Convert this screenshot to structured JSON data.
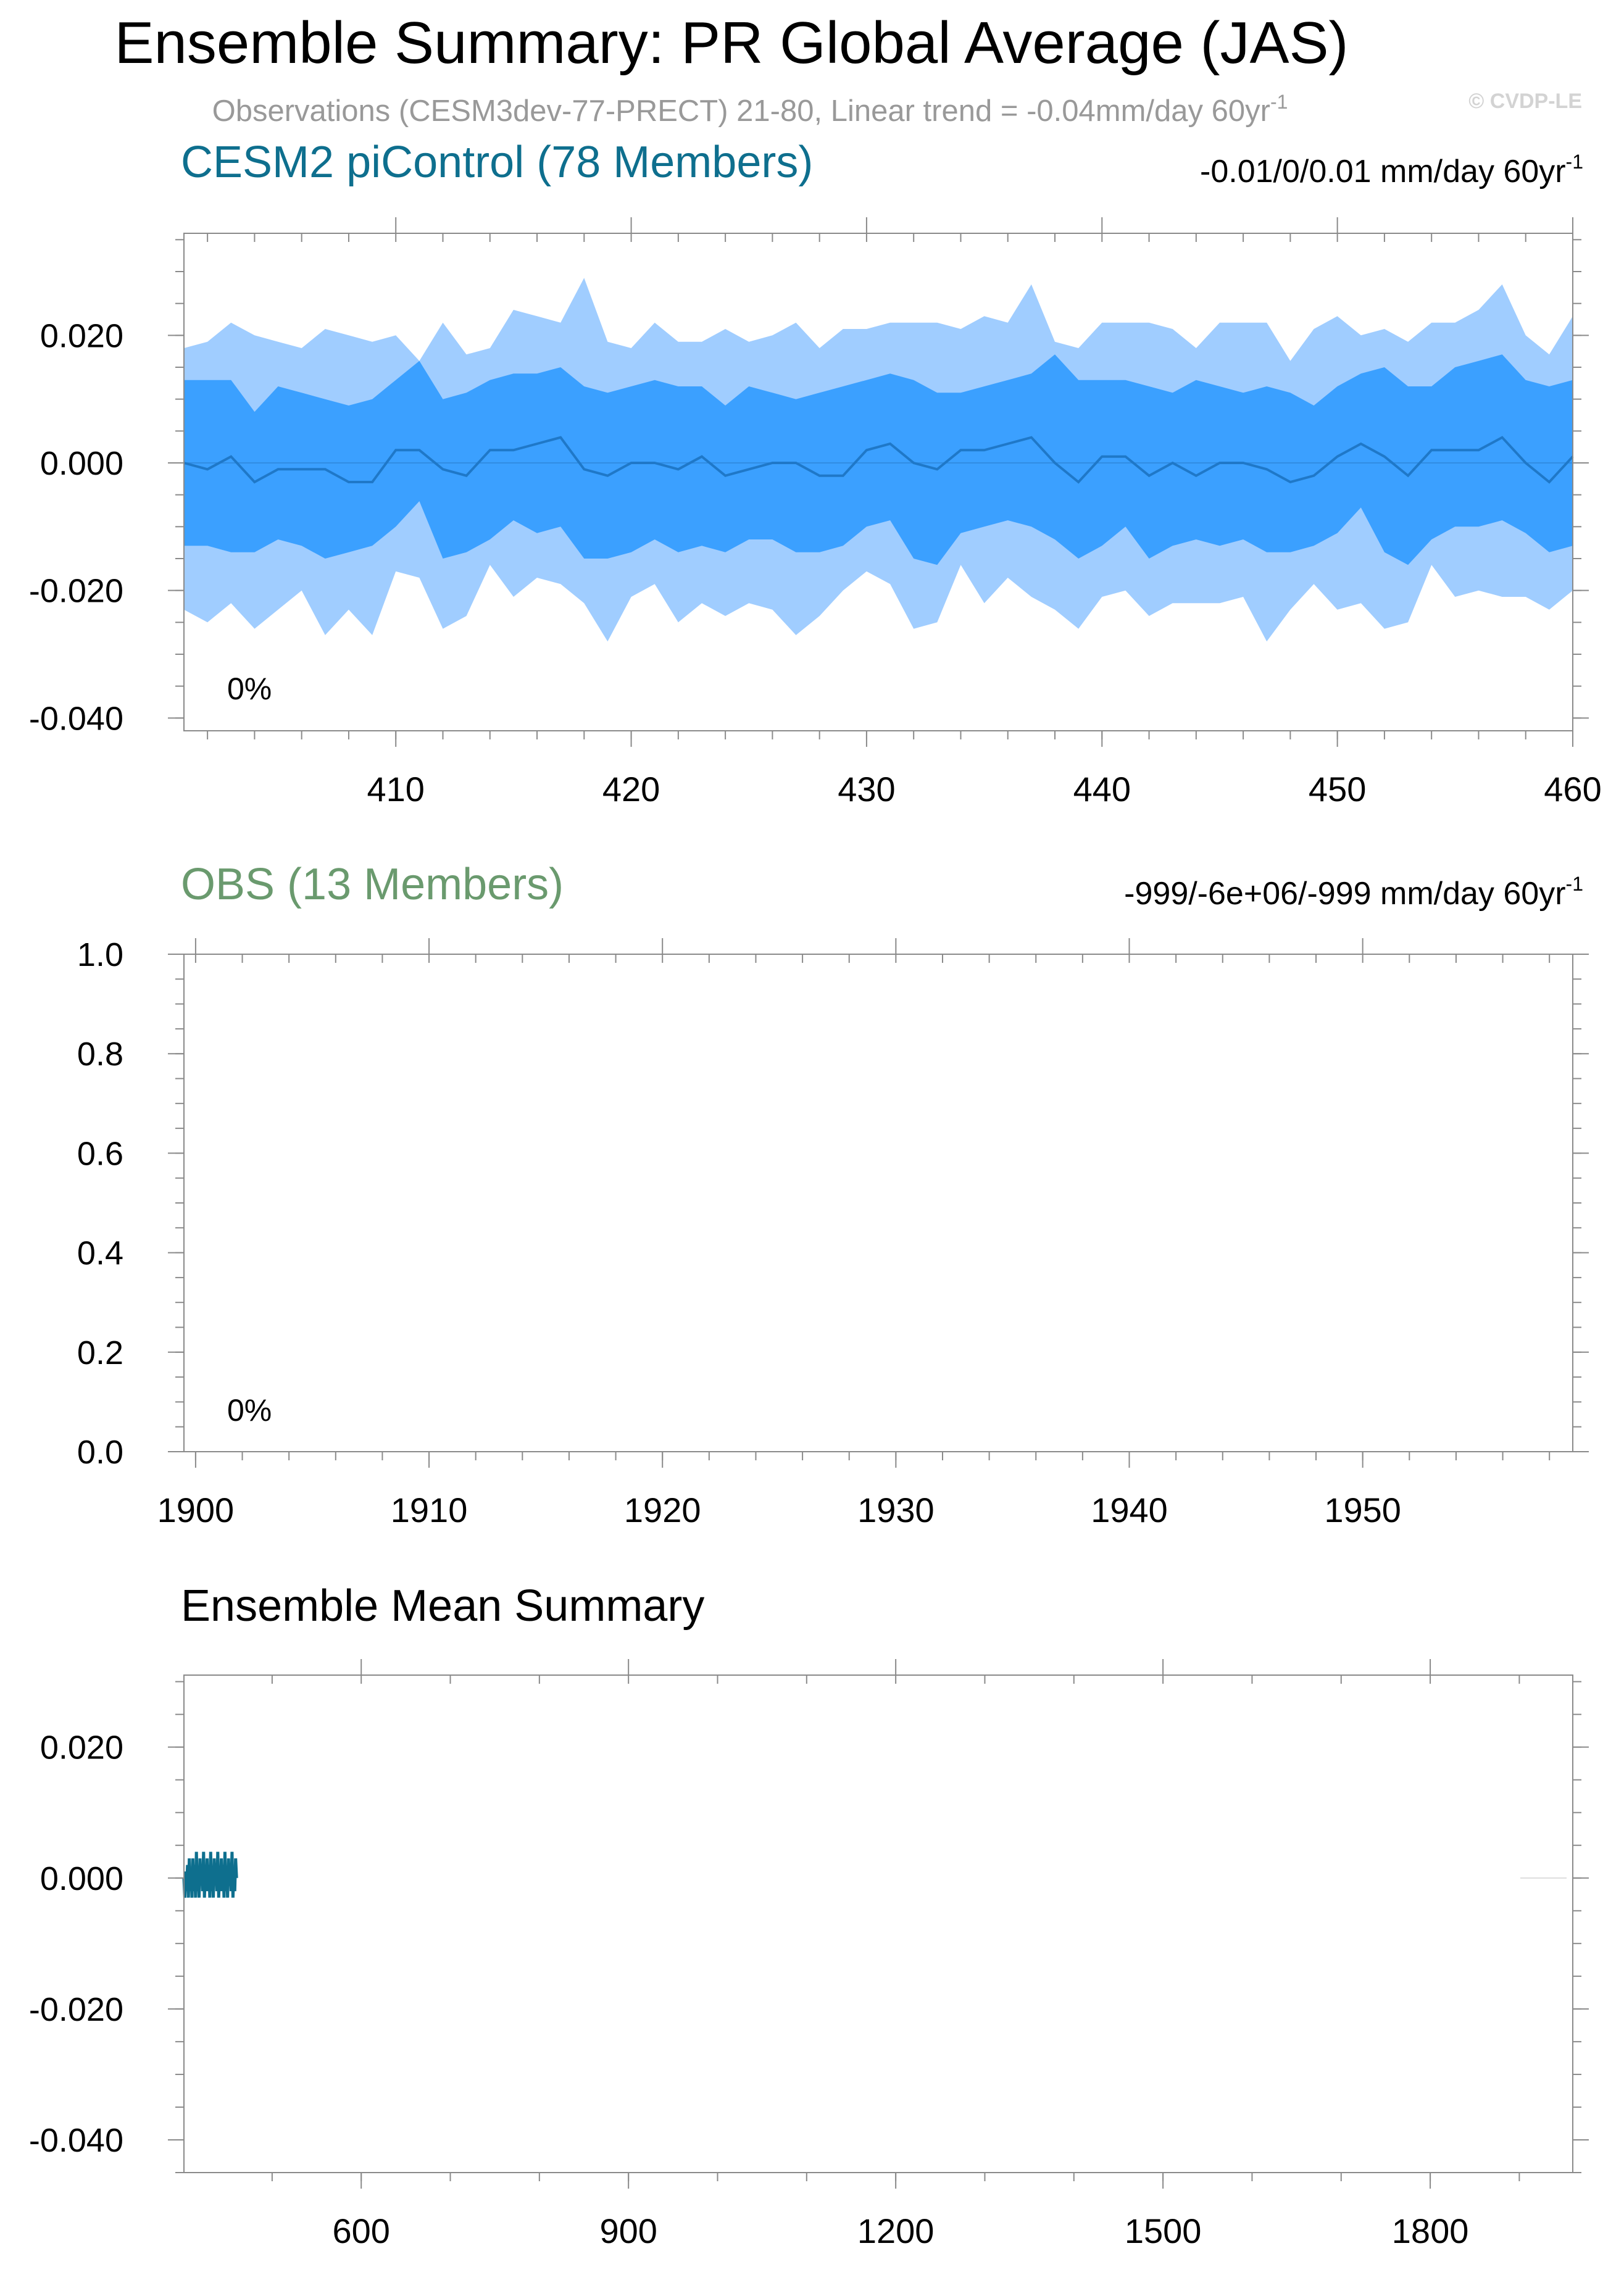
{
  "header": {
    "title": "Ensemble Summary: PR Global Average (JAS)",
    "subtitle": "Observations (CESM3dev-77-PRECT) 21-80, Linear trend = -0.04mm/day 60yr",
    "subtitle_sup": "-1",
    "watermark": "© CVDP-LE"
  },
  "colors": {
    "outer_band": "#a0cdff",
    "inner_band": "#3ba0ff",
    "mean_line": "#1f78c8",
    "model_title": "#0e6f8e",
    "obs_title": "#6a9a6e",
    "subtitle": "#999999",
    "watermark": "#d3d3d3",
    "ens_mean_line": "#0e6f8e"
  },
  "chart_data": [
    {
      "type": "area",
      "title": "CESM2 piControl (78 Members)",
      "trend_label": "-0.01/0/0.01 mm/day 60yr",
      "trend_sup": "-1",
      "percent_label": "0%",
      "xlim": [
        401,
        460
      ],
      "ylim": [
        -0.042,
        0.036
      ],
      "xticks": [
        410,
        420,
        430,
        440,
        450,
        460
      ],
      "xtick_labels": [
        "410",
        "420",
        "430",
        "440",
        "450",
        "460"
      ],
      "yticks": [
        0.02,
        0.0,
        -0.02,
        -0.04
      ],
      "ytick_labels": [
        "0.020",
        "0.000",
        "-0.020",
        "-0.040"
      ],
      "x": [
        401,
        402,
        403,
        404,
        405,
        406,
        407,
        408,
        409,
        410,
        411,
        412,
        413,
        414,
        415,
        416,
        417,
        418,
        419,
        420,
        421,
        422,
        423,
        424,
        425,
        426,
        427,
        428,
        429,
        430,
        431,
        432,
        433,
        434,
        435,
        436,
        437,
        438,
        439,
        440,
        441,
        442,
        443,
        444,
        445,
        446,
        447,
        448,
        449,
        450,
        451,
        452,
        453,
        454,
        455,
        456,
        457,
        458,
        459,
        460
      ],
      "series": [
        {
          "role": "upper_outer",
          "values": [
            0.018,
            0.019,
            0.022,
            0.02,
            0.019,
            0.018,
            0.021,
            0.02,
            0.019,
            0.02,
            0.016,
            0.022,
            0.017,
            0.018,
            0.024,
            0.023,
            0.022,
            0.029,
            0.019,
            0.018,
            0.022,
            0.019,
            0.019,
            0.021,
            0.019,
            0.02,
            0.022,
            0.018,
            0.021,
            0.021,
            0.022,
            0.022,
            0.022,
            0.021,
            0.023,
            0.022,
            0.028,
            0.019,
            0.018,
            0.022,
            0.022,
            0.022,
            0.021,
            0.018,
            0.022,
            0.022,
            0.022,
            0.016,
            0.021,
            0.023,
            0.02,
            0.021,
            0.019,
            0.022,
            0.022,
            0.024,
            0.028,
            0.02,
            0.017,
            0.023
          ]
        },
        {
          "role": "upper_inner",
          "values": [
            0.013,
            0.013,
            0.013,
            0.008,
            0.012,
            0.011,
            0.01,
            0.009,
            0.01,
            0.013,
            0.016,
            0.01,
            0.011,
            0.013,
            0.014,
            0.014,
            0.015,
            0.012,
            0.011,
            0.012,
            0.013,
            0.012,
            0.012,
            0.009,
            0.012,
            0.011,
            0.01,
            0.011,
            0.012,
            0.013,
            0.014,
            0.013,
            0.011,
            0.011,
            0.012,
            0.013,
            0.014,
            0.017,
            0.013,
            0.013,
            0.013,
            0.012,
            0.011,
            0.013,
            0.012,
            0.011,
            0.012,
            0.011,
            0.009,
            0.012,
            0.014,
            0.015,
            0.012,
            0.012,
            0.015,
            0.016,
            0.017,
            0.013,
            0.012,
            0.013
          ]
        },
        {
          "role": "mean",
          "values": [
            0.0,
            -0.001,
            0.001,
            -0.003,
            -0.001,
            -0.001,
            -0.001,
            -0.003,
            -0.003,
            0.002,
            0.002,
            -0.001,
            -0.002,
            0.002,
            0.002,
            0.003,
            0.004,
            -0.001,
            -0.002,
            0.0,
            0.0,
            -0.001,
            0.001,
            -0.002,
            -0.001,
            0.0,
            0.0,
            -0.002,
            -0.002,
            0.002,
            0.003,
            0.0,
            -0.001,
            0.002,
            0.002,
            0.003,
            0.004,
            0.0,
            -0.003,
            0.001,
            0.001,
            -0.002,
            0.0,
            -0.002,
            0.0,
            0.0,
            -0.001,
            -0.003,
            -0.002,
            0.001,
            0.003,
            0.001,
            -0.002,
            0.002,
            0.002,
            0.002,
            0.004,
            0.0,
            -0.003,
            0.001
          ]
        },
        {
          "role": "lower_inner",
          "values": [
            -0.013,
            -0.013,
            -0.014,
            -0.014,
            -0.012,
            -0.013,
            -0.015,
            -0.014,
            -0.013,
            -0.01,
            -0.006,
            -0.015,
            -0.014,
            -0.012,
            -0.009,
            -0.011,
            -0.01,
            -0.015,
            -0.015,
            -0.014,
            -0.012,
            -0.014,
            -0.013,
            -0.014,
            -0.012,
            -0.012,
            -0.014,
            -0.014,
            -0.013,
            -0.01,
            -0.009,
            -0.015,
            -0.016,
            -0.011,
            -0.01,
            -0.009,
            -0.01,
            -0.012,
            -0.015,
            -0.013,
            -0.01,
            -0.015,
            -0.013,
            -0.012,
            -0.013,
            -0.012,
            -0.014,
            -0.014,
            -0.013,
            -0.011,
            -0.007,
            -0.014,
            -0.016,
            -0.012,
            -0.01,
            -0.01,
            -0.009,
            -0.011,
            -0.014,
            -0.013
          ]
        },
        {
          "role": "lower_outer",
          "values": [
            -0.023,
            -0.025,
            -0.022,
            -0.026,
            -0.023,
            -0.02,
            -0.027,
            -0.023,
            -0.027,
            -0.017,
            -0.018,
            -0.026,
            -0.024,
            -0.016,
            -0.021,
            -0.018,
            -0.019,
            -0.022,
            -0.028,
            -0.021,
            -0.019,
            -0.025,
            -0.022,
            -0.024,
            -0.022,
            -0.023,
            -0.027,
            -0.024,
            -0.02,
            -0.017,
            -0.019,
            -0.026,
            -0.025,
            -0.016,
            -0.022,
            -0.018,
            -0.021,
            -0.023,
            -0.026,
            -0.021,
            -0.02,
            -0.024,
            -0.022,
            -0.022,
            -0.022,
            -0.021,
            -0.028,
            -0.023,
            -0.019,
            -0.023,
            -0.022,
            -0.026,
            -0.025,
            -0.016,
            -0.021,
            -0.02,
            -0.021,
            -0.021,
            -0.023,
            -0.02
          ]
        }
      ]
    },
    {
      "type": "line",
      "title": "OBS (13 Members)",
      "trend_label": "-999/-6e+06/-999 mm/day 60yr",
      "trend_sup": "-1",
      "percent_label": "0%",
      "xlim": [
        1899.5,
        1959
      ],
      "ylim": [
        0,
        1
      ],
      "xticks": [
        1900,
        1910,
        1920,
        1930,
        1940,
        1950
      ],
      "xtick_labels": [
        "1900",
        "1910",
        "1920",
        "1930",
        "1940",
        "1950"
      ],
      "yticks": [
        0.0,
        0.2,
        0.4,
        0.6,
        0.8,
        1.0
      ],
      "ytick_labels": [
        "0.0",
        "0.2",
        "0.4",
        "0.6",
        "0.8",
        "1.0"
      ],
      "series": []
    },
    {
      "type": "line",
      "title": "Ensemble Mean Summary",
      "xlim": [
        401,
        1960
      ],
      "ylim": [
        -0.045,
        0.031
      ],
      "xticks": [
        600,
        900,
        1200,
        1500,
        1800
      ],
      "xtick_labels": [
        "600",
        "900",
        "1200",
        "1500",
        "1800"
      ],
      "yticks": [
        0.02,
        0.0,
        -0.02,
        -0.04
      ],
      "ytick_labels": [
        "0.020",
        "0.000",
        "-0.020",
        "-0.040"
      ],
      "x": [
        401,
        402,
        403,
        404,
        405,
        406,
        407,
        408,
        409,
        410,
        411,
        412,
        413,
        414,
        415,
        416,
        417,
        418,
        419,
        420,
        421,
        422,
        423,
        424,
        425,
        426,
        427,
        428,
        429,
        430,
        431,
        432,
        433,
        434,
        435,
        436,
        437,
        438,
        439,
        440,
        441,
        442,
        443,
        444,
        445,
        446,
        447,
        448,
        449,
        450,
        451,
        452,
        453,
        454,
        455,
        456,
        457,
        458,
        459,
        460
      ],
      "series": [
        {
          "role": "ensemble_mean",
          "values": [
            0.0,
            -0.003,
            0.001,
            -0.002,
            0.002,
            -0.003,
            0.003,
            -0.002,
            0.001,
            -0.003,
            0.003,
            -0.002,
            0.002,
            -0.003,
            0.004,
            -0.002,
            0.001,
            -0.003,
            0.003,
            -0.001,
            0.002,
            -0.002,
            0.004,
            -0.003,
            0.001,
            -0.002,
            0.003,
            -0.002,
            0.002,
            -0.003,
            0.004,
            -0.002,
            0.001,
            -0.003,
            0.003,
            -0.001,
            0.002,
            -0.002,
            0.004,
            -0.003,
            0.001,
            -0.002,
            0.003,
            -0.002,
            0.002,
            -0.003,
            0.004,
            -0.002,
            0.001,
            -0.003,
            0.003,
            -0.001,
            0.002,
            -0.002,
            0.004,
            -0.003,
            0.001,
            -0.002,
            0.003,
            0.0
          ]
        }
      ]
    }
  ]
}
